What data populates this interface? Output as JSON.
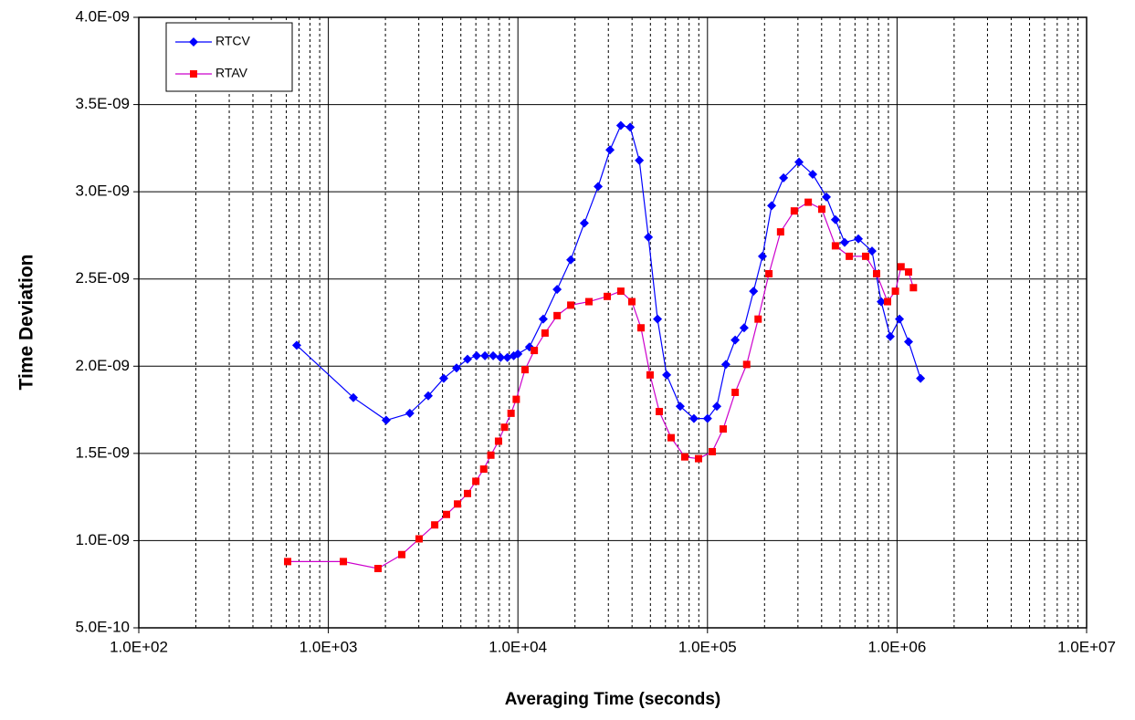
{
  "chart_data": {
    "type": "line",
    "x_label": "Averaging Time (seconds)",
    "y_label": "Time Deviation",
    "x_log": true,
    "grid": true,
    "legend_position": "upper-left",
    "xlim": [
      100,
      10000000
    ],
    "ylim": [
      5e-10,
      4e-09
    ],
    "xticks": [
      {
        "value": 100,
        "label": "1.0E+02"
      },
      {
        "value": 1000,
        "label": "1.0E+03"
      },
      {
        "value": 10000,
        "label": "1.0E+04"
      },
      {
        "value": 100000,
        "label": "1.0E+05"
      },
      {
        "value": 1000000,
        "label": "1.0E+06"
      },
      {
        "value": 10000000,
        "label": "1.0E+07"
      }
    ],
    "x_minor_ticks": [
      200,
      300,
      400,
      500,
      600,
      700,
      800,
      900,
      2000,
      3000,
      4000,
      5000,
      6000,
      7000,
      8000,
      9000,
      20000,
      30000,
      40000,
      50000,
      60000,
      70000,
      80000,
      90000,
      200000,
      300000,
      400000,
      500000,
      600000,
      700000,
      800000,
      900000,
      2000000,
      3000000,
      4000000,
      5000000,
      6000000,
      7000000,
      8000000,
      9000000
    ],
    "yticks": [
      {
        "value": 5e-10,
        "label": "5.0E-10"
      },
      {
        "value": 1e-09,
        "label": "1.0E-09"
      },
      {
        "value": 1.5e-09,
        "label": "1.5E-09"
      },
      {
        "value": 2e-09,
        "label": "2.0E-09"
      },
      {
        "value": 2.5e-09,
        "label": "2.5E-09"
      },
      {
        "value": 3e-09,
        "label": "3.0E-09"
      },
      {
        "value": 3.5e-09,
        "label": "3.5E-09"
      },
      {
        "value": 4e-09,
        "label": "4.0E-09"
      }
    ],
    "series": [
      {
        "name": "RTCV",
        "color": "#0000ff",
        "marker": "diamond",
        "x": [
          681,
          1355,
          2018,
          2690,
          3365,
          4060,
          4745,
          5420,
          6055,
          6700,
          7400,
          8100,
          8800,
          9500,
          10000,
          11500,
          13600,
          16100,
          19000,
          22400,
          26500,
          30600,
          34900,
          39100,
          43700,
          48800,
          54500,
          60900,
          71800,
          84800,
          100000,
          112000,
          125000,
          140000,
          156000,
          175000,
          195000,
          218000,
          252000,
          304000,
          359000,
          424000,
          473000,
          529000,
          625000,
          738000,
          825000,
          921000,
          1030000,
          1150000,
          1330000
        ],
        "values": [
          2.12e-09,
          1.82e-09,
          1.69e-09,
          1.73e-09,
          1.83e-09,
          1.93e-09,
          1.99e-09,
          2.04e-09,
          2.06e-09,
          2.06e-09,
          2.06e-09,
          2.05e-09,
          2.05e-09,
          2.06e-09,
          2.07e-09,
          2.11e-09,
          2.27e-09,
          2.44e-09,
          2.61e-09,
          2.82e-09,
          3.03e-09,
          3.24e-09,
          3.38e-09,
          3.37e-09,
          3.18e-09,
          2.74e-09,
          2.27e-09,
          1.95e-09,
          1.77e-09,
          1.7e-09,
          1.7e-09,
          1.77e-09,
          2.01e-09,
          2.15e-09,
          2.22e-09,
          2.43e-09,
          2.63e-09,
          2.92e-09,
          3.08e-09,
          3.17e-09,
          3.1e-09,
          2.97e-09,
          2.84e-09,
          2.71e-09,
          2.73e-09,
          2.66e-09,
          2.37e-09,
          2.17e-09,
          2.27e-09,
          2.14e-09,
          1.93e-09
        ]
      },
      {
        "name": "RTAV",
        "color": "#ff0000",
        "line_color": "#cc00cc",
        "marker": "square",
        "x": [
          610,
          1200,
          1828,
          2440,
          3010,
          3640,
          4200,
          4800,
          5420,
          6000,
          6600,
          7200,
          7900,
          8500,
          9200,
          9800,
          10900,
          12200,
          13900,
          16100,
          19000,
          23700,
          29600,
          34900,
          39900,
          44600,
          49800,
          55700,
          64300,
          75900,
          89700,
          106000,
          121000,
          140000,
          161000,
          185000,
          211000,
          243000,
          287000,
          340000,
          401000,
          473000,
          560000,
          683000,
          780000,
          891000,
          980000,
          1050000,
          1150000,
          1220000
        ],
        "values": [
          8.8e-10,
          8.8e-10,
          8.4e-10,
          9.2e-10,
          1.01e-09,
          1.09e-09,
          1.15e-09,
          1.21e-09,
          1.27e-09,
          1.34e-09,
          1.41e-09,
          1.49e-09,
          1.57e-09,
          1.65e-09,
          1.73e-09,
          1.81e-09,
          1.98e-09,
          2.09e-09,
          2.19e-09,
          2.29e-09,
          2.35e-09,
          2.37e-09,
          2.4e-09,
          2.43e-09,
          2.37e-09,
          2.22e-09,
          1.95e-09,
          1.74e-09,
          1.59e-09,
          1.48e-09,
          1.47e-09,
          1.51e-09,
          1.64e-09,
          1.85e-09,
          2.01e-09,
          2.27e-09,
          2.53e-09,
          2.77e-09,
          2.89e-09,
          2.94e-09,
          2.9e-09,
          2.69e-09,
          2.63e-09,
          2.63e-09,
          2.53e-09,
          2.37e-09,
          2.43e-09,
          2.57e-09,
          2.54e-09,
          2.45e-09
        ]
      }
    ]
  }
}
